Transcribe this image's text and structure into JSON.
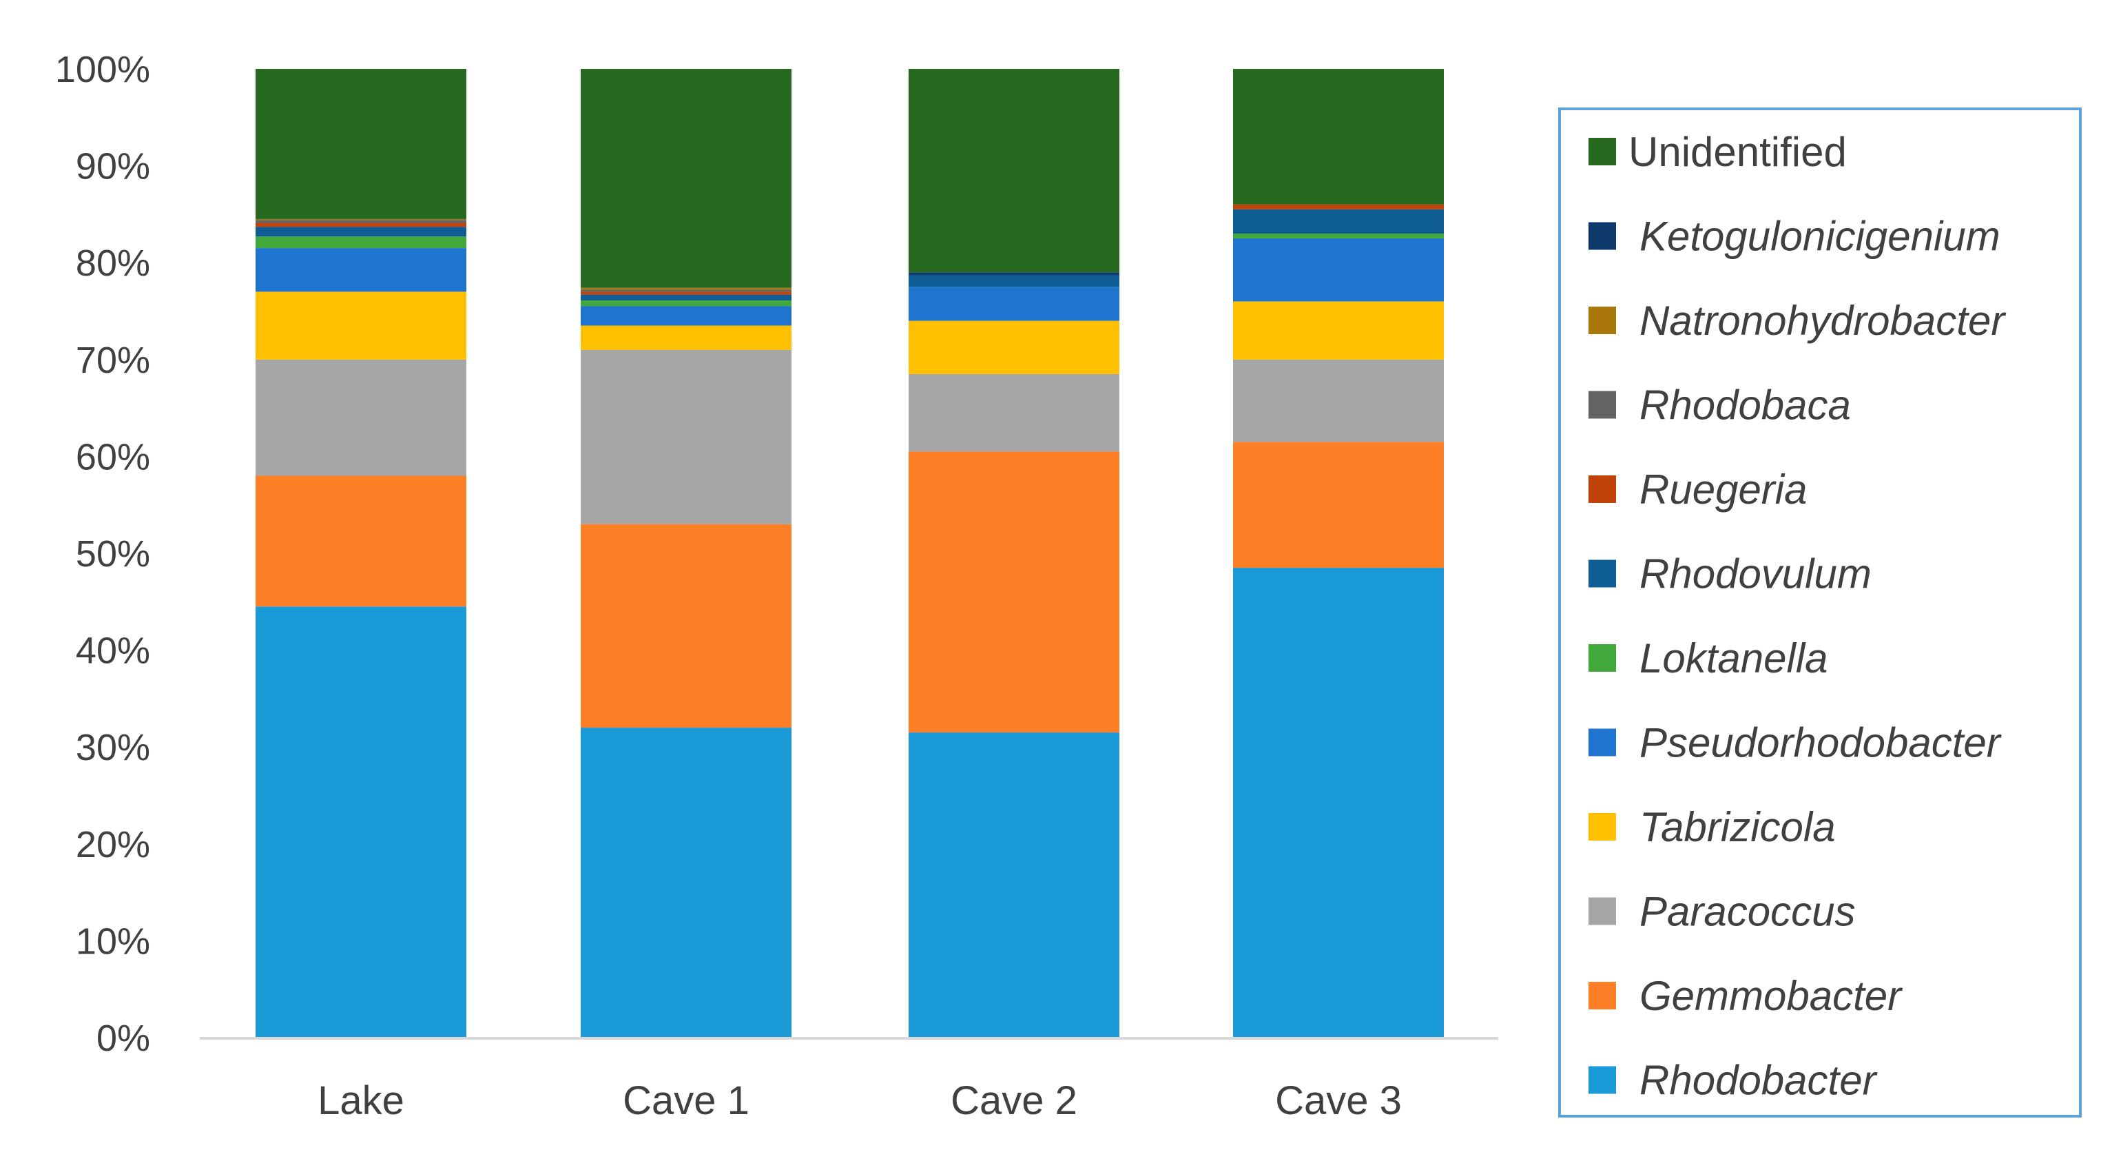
{
  "chart_data": {
    "type": "bar",
    "stacked": true,
    "percent": true,
    "categories": [
      "Lake",
      "Cave 1",
      "Cave 2",
      "Cave 3"
    ],
    "y_ticks": [
      "0%",
      "10%",
      "20%",
      "30%",
      "40%",
      "50%",
      "60%",
      "70%",
      "80%",
      "90%",
      "100%"
    ],
    "ylim": [
      0,
      100
    ],
    "grid": false,
    "legend_position": "right",
    "series": [
      {
        "name": "Rhodobacter",
        "italic": true,
        "color": "#1A9AD6",
        "values": [
          44.5,
          32.0,
          31.5,
          48.5
        ]
      },
      {
        "name": "Gemmobacter",
        "italic": true,
        "color": "#FF7F27",
        "values": [
          13.5,
          21.0,
          29.0,
          13.0
        ]
      },
      {
        "name": "Paracoccus",
        "italic": true,
        "color": "#A6A6A6",
        "values": [
          12.0,
          18.0,
          8.0,
          8.5
        ]
      },
      {
        "name": "Tabrizicola",
        "italic": true,
        "color": "#FFC000",
        "values": [
          7.0,
          2.5,
          5.5,
          6.0
        ]
      },
      {
        "name": "Pseudorhodobacter",
        "italic": true,
        "color": "#1F74CF",
        "values": [
          4.5,
          2.0,
          3.5,
          6.5
        ]
      },
      {
        "name": "Loktanella",
        "italic": true,
        "color": "#41A83B",
        "values": [
          1.2,
          0.6,
          0.0,
          0.5
        ]
      },
      {
        "name": "Rhodovulum",
        "italic": true,
        "color": "#0E5D95",
        "values": [
          1.0,
          0.6,
          1.2,
          2.5
        ]
      },
      {
        "name": "Ruegeria",
        "italic": true,
        "color": "#C0430A",
        "values": [
          0.4,
          0.3,
          0.0,
          0.5
        ]
      },
      {
        "name": "Rhodobaca",
        "italic": true,
        "color": "#636363",
        "values": [
          0.3,
          0.2,
          0.0,
          0.0
        ]
      },
      {
        "name": "Natronohydrobacter",
        "italic": true,
        "color": "#A9770B",
        "values": [
          0.1,
          0.2,
          0.0,
          0.0
        ]
      },
      {
        "name": "Ketogulonicigenium",
        "italic": true,
        "color": "#0D3A6A",
        "values": [
          0.0,
          0.0,
          0.3,
          0.0
        ]
      },
      {
        "name": "Unidentified",
        "italic": false,
        "color": "#27691F",
        "values": [
          15.5,
          22.6,
          21.0,
          14.0
        ]
      }
    ]
  },
  "colors": {
    "axis_line": "#D9D9D9",
    "legend_border": "#5BA3D9",
    "text": "#404040"
  }
}
